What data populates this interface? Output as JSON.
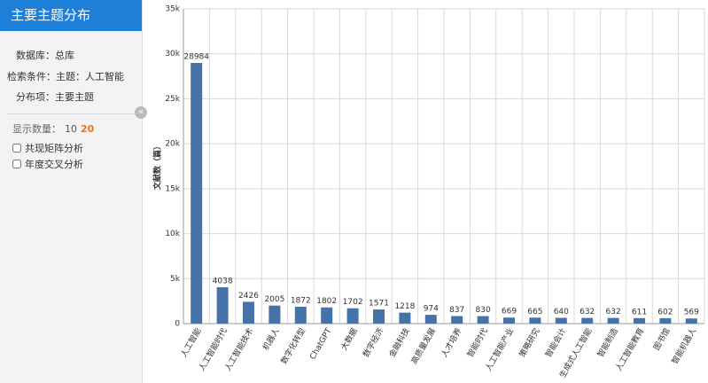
{
  "sidebar": {
    "title": "主要主题分布",
    "database": "数据库：总库",
    "condition": "检索条件：主题：人工智能",
    "dist_item": "分布项：主要主题",
    "show_count_label": "显示数量：",
    "show_count_options": [
      "10",
      "20"
    ],
    "checkboxes": [
      "共现矩阵分析",
      "年度交叉分析"
    ],
    "collapse": "«"
  },
  "chart_data": {
    "type": "bar",
    "y_label": "文献数（篇）",
    "categories": [
      "人工智能",
      "人工智能时代",
      "人工智能技术",
      "机器人",
      "数字化转型",
      "ChatGPT",
      "大数据",
      "数字经济",
      "金融科技",
      "高质量发展",
      "人才培养",
      "智能时代",
      "人工智能产业",
      "策略研究",
      "智能会计",
      "生成式人工智能",
      "智能制造",
      "人工智能教育",
      "图书馆",
      "智能机器人"
    ],
    "values": [
      28984,
      4038,
      2426,
      2005,
      1872,
      1802,
      1702,
      1571,
      1218,
      974,
      837,
      830,
      669,
      665,
      640,
      632,
      632,
      611,
      602,
      569
    ],
    "color": "#4572a7",
    "ylim": [
      0,
      35000
    ],
    "yticks": [
      0,
      {
        "value": 5000,
        "label": "5k"
      },
      {
        "value": 10000,
        "label": "10k"
      },
      {
        "value": 15000,
        "label": "15k"
      },
      {
        "value": 20000,
        "label": "20k"
      },
      {
        "value": 25000,
        "label": "25k"
      },
      {
        "value": 30000,
        "label": "30k"
      },
      {
        "value": 35000,
        "label": "35k"
      }
    ],
    "grid": true
  }
}
